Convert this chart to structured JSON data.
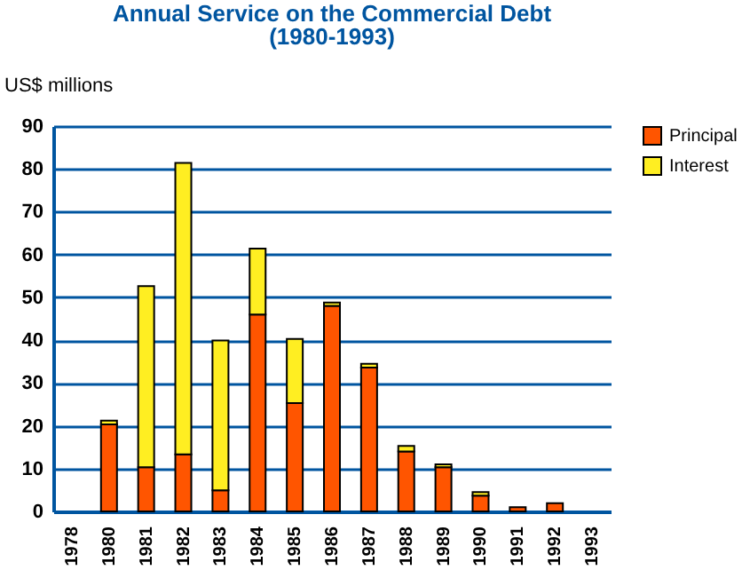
{
  "chart_data": {
    "type": "bar",
    "stacked": true,
    "title": "Annual Service on the Commercial Debt",
    "subtitle": "(1980-1993)",
    "ylabel": "US$ millions",
    "categories": [
      "1978",
      "1980",
      "1981",
      "1982",
      "1983",
      "1984",
      "1985",
      "1986",
      "1987",
      "1988",
      "1989",
      "1990",
      "1991",
      "1992",
      "1993"
    ],
    "series": [
      {
        "name": "Principal",
        "color": "#ff5500",
        "values": [
          null,
          20.3,
          10.3,
          13.3,
          4.9,
          46.0,
          25.3,
          48.0,
          33.6,
          14.0,
          10.3,
          3.7,
          1.0,
          1.9,
          null
        ]
      },
      {
        "name": "Interest",
        "color": "#ffee22",
        "values": [
          null,
          0.9,
          42.3,
          68.1,
          35.0,
          15.4,
          15.0,
          0.8,
          0.9,
          1.3,
          0.7,
          0.8,
          null,
          null,
          null
        ]
      }
    ],
    "ylim": [
      0,
      90
    ],
    "yticks": [
      0,
      10,
      20,
      30,
      40,
      50,
      60,
      70,
      80,
      90
    ],
    "grid": "y",
    "legend": "right"
  }
}
